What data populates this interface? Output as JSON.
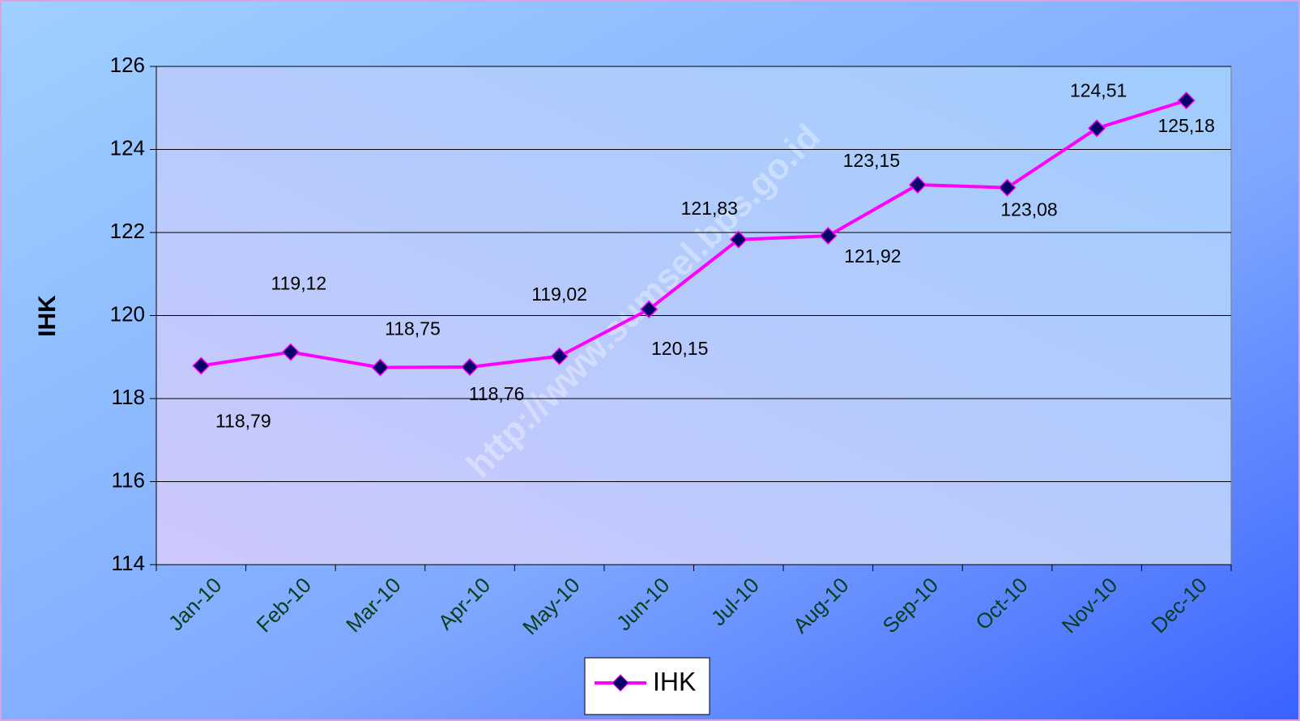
{
  "chart_data": {
    "type": "line",
    "y_label": "IHK",
    "watermark": "http://www.sumsel.bps.go.id",
    "categories": [
      "Jan-10",
      "Feb-10",
      "Mar-10",
      "Apr-10",
      "May-10",
      "Jun-10",
      "Jul-10",
      "Aug-10",
      "Sep-10",
      "Oct-10",
      "Nov-10",
      "Dec-10"
    ],
    "series": [
      {
        "name": "IHK",
        "color": "#ff00ff",
        "marker_color": "#000066",
        "values": [
          118.79,
          119.12,
          118.75,
          118.76,
          119.02,
          120.15,
          121.83,
          121.92,
          123.15,
          123.08,
          124.51,
          125.18
        ],
        "value_labels": [
          "118,79",
          "119,12",
          "118,75",
          "118,76",
          "119,02",
          "120,15",
          "121,83",
          "121,92",
          "123,15",
          "123,08",
          "124,51",
          "125,18"
        ]
      }
    ],
    "ylim": [
      114,
      126
    ],
    "yticks": [
      114,
      116,
      118,
      120,
      122,
      124,
      126
    ],
    "grid": true,
    "legend": "bottom"
  }
}
